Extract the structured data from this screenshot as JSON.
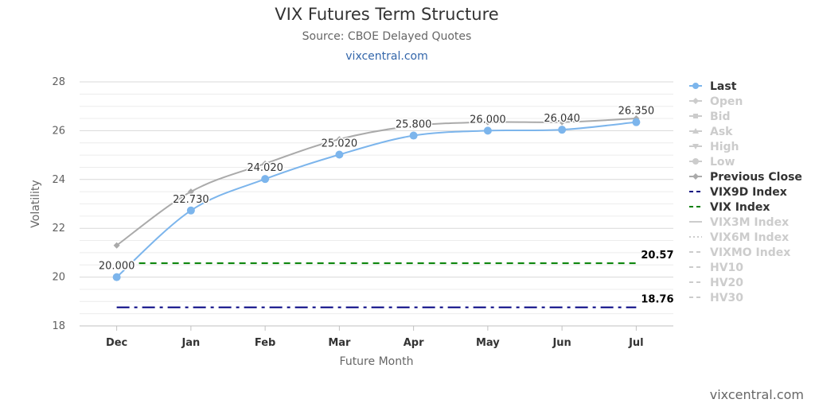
{
  "title": "VIX Futures Term Structure",
  "subtitle": "Source: CBOE Delayed Quotes",
  "link_text": "vixcentral.com",
  "credit": "vixcentral.com",
  "chart_data": {
    "type": "line",
    "title": "VIX Futures Term Structure",
    "subtitle": "Source: CBOE Delayed Quotes",
    "xlabel": "Future Month",
    "ylabel": "Volatility",
    "categories": [
      "Dec",
      "Jan",
      "Feb",
      "Mar",
      "Apr",
      "May",
      "Jun",
      "Jul"
    ],
    "ylim": [
      18,
      28
    ],
    "yticks": [
      18,
      20,
      22,
      24,
      26,
      28
    ],
    "grid": true,
    "legend_position": "right",
    "series": [
      {
        "name": "Last",
        "values": [
          20.0,
          22.73,
          24.02,
          25.02,
          25.8,
          26.0,
          26.04,
          26.35
        ],
        "labels": [
          "20.000",
          "22.730",
          "24.020",
          "25.020",
          "25.800",
          "26.000",
          "26.040",
          "26.350"
        ],
        "color": "#7cb5ec",
        "style": "solid",
        "marker": "circle",
        "visible": true
      },
      {
        "name": "Open",
        "color": "#cccccc",
        "marker": "diamond",
        "visible": false
      },
      {
        "name": "Bid",
        "color": "#cccccc",
        "marker": "square",
        "visible": false
      },
      {
        "name": "Ask",
        "color": "#cccccc",
        "marker": "triangle",
        "visible": false
      },
      {
        "name": "High",
        "color": "#cccccc",
        "marker": "triangle-down",
        "visible": false
      },
      {
        "name": "Low",
        "color": "#cccccc",
        "marker": "circle",
        "visible": false
      },
      {
        "name": "Previous Close",
        "values": [
          21.3,
          23.5,
          24.65,
          25.65,
          26.2,
          26.35,
          26.35,
          26.5
        ],
        "color": "#aaaaaa",
        "style": "solid",
        "marker": "diamond",
        "visible": true
      },
      {
        "name": "VIX9D Index",
        "value": 18.76,
        "label": "18.76",
        "color": "#000080",
        "style": "dashdot",
        "visible": true
      },
      {
        "name": "VIX Index",
        "value": 20.57,
        "label": "20.57",
        "color": "#008000",
        "style": "dash",
        "visible": true
      },
      {
        "name": "VIX3M Index",
        "color": "#cccccc",
        "style": "solid",
        "visible": false
      },
      {
        "name": "VIX6M Index",
        "color": "#cccccc",
        "style": "dot",
        "visible": false
      },
      {
        "name": "VIXMO Index",
        "color": "#cccccc",
        "style": "dash",
        "visible": false
      },
      {
        "name": "HV10",
        "color": "#cccccc",
        "style": "dash",
        "visible": false
      },
      {
        "name": "HV20",
        "color": "#cccccc",
        "style": "dash",
        "visible": false
      },
      {
        "name": "HV30",
        "color": "#cccccc",
        "style": "dash",
        "visible": false
      }
    ]
  }
}
